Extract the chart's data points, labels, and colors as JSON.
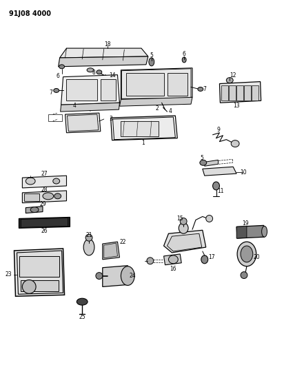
{
  "title": "91J08 4000",
  "bg_color": "#ffffff",
  "fig_width": 4.12,
  "fig_height": 5.33,
  "dpi": 100
}
